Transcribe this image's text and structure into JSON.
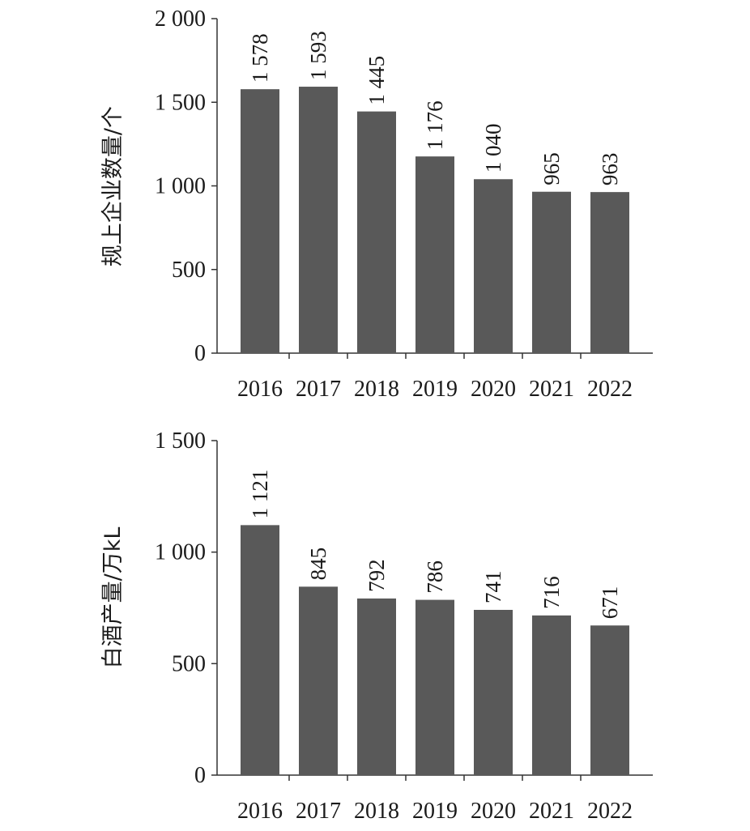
{
  "chart_data": [
    {
      "type": "bar",
      "categories": [
        "2016",
        "2017",
        "2018",
        "2019",
        "2020",
        "2021",
        "2022"
      ],
      "values": [
        1578,
        1593,
        1445,
        1176,
        1040,
        965,
        963
      ],
      "value_labels": [
        "1 578",
        "1 593",
        "1 445",
        "1 176",
        "1 040",
        "965",
        "963"
      ],
      "title": "",
      "xlabel": "",
      "ylabel": "规上企业数量/个",
      "ylim": [
        0,
        2000
      ],
      "yticks": [
        0,
        500,
        1000,
        1500,
        2000
      ],
      "ytick_labels": [
        "0",
        "500",
        "1 000",
        "1 500",
        "2 000"
      ],
      "bar_color": "#595959",
      "grid": false
    },
    {
      "type": "bar",
      "categories": [
        "2016",
        "2017",
        "2018",
        "2019",
        "2020",
        "2021",
        "2022"
      ],
      "values": [
        1121,
        845,
        792,
        786,
        741,
        716,
        671
      ],
      "value_labels": [
        "1 121",
        "845",
        "792",
        "786",
        "741",
        "716",
        "671"
      ],
      "title": "",
      "xlabel": "",
      "ylabel": "白酒产量/万kL",
      "ylim": [
        0,
        1500
      ],
      "yticks": [
        0,
        500,
        1000,
        1500
      ],
      "ytick_labels": [
        "0",
        "500",
        "1 000",
        "1 500"
      ],
      "bar_color": "#595959",
      "grid": false
    }
  ]
}
